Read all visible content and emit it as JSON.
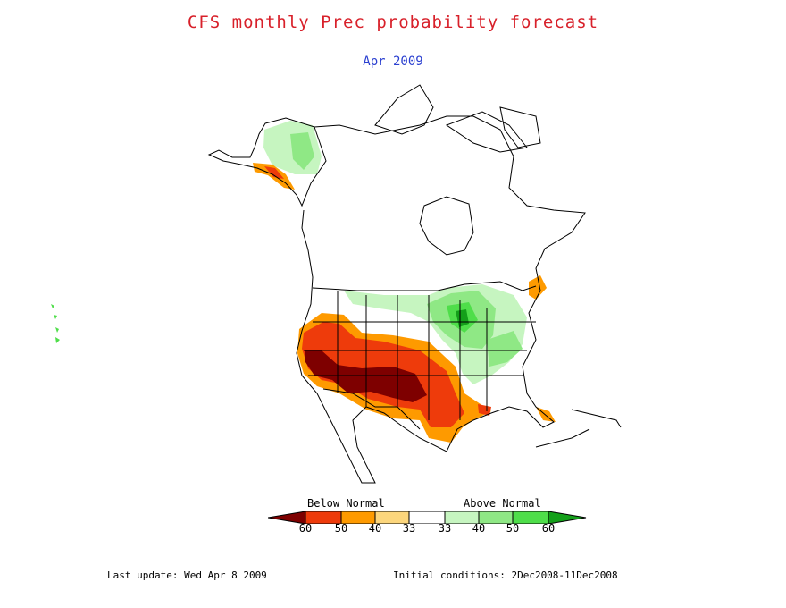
{
  "title": "CFS monthly Prec probability forecast",
  "subtitle": "Apr 2009",
  "legend": {
    "below_label": "Below Normal",
    "above_label": "Above Normal",
    "ticks": [
      "60",
      "50",
      "40",
      "33",
      "33",
      "40",
      "50",
      "60"
    ],
    "colors": {
      "below_60plus": "#7e0000",
      "below_50_60": "#ee3b0b",
      "below_40_50": "#fe9a00",
      "below_33_40": "#fcd67c",
      "near_normal": "#ffffff",
      "above_33_40": "#c6f5c0",
      "above_40_50": "#8fe885",
      "above_50_60": "#4fde4a",
      "above_60plus": "#14a01a"
    }
  },
  "footer": {
    "last_update": "Last update: Wed Apr 8 2009",
    "initial_conditions": "Initial conditions: 2Dec2008-11Dec2008"
  }
}
